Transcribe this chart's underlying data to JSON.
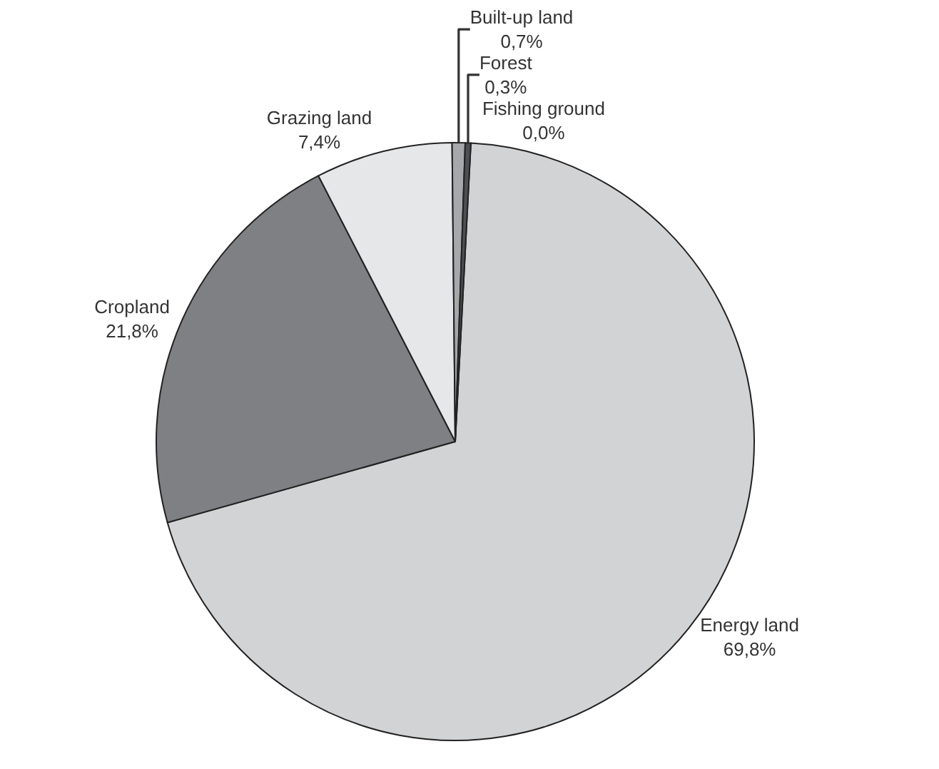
{
  "chart_data": {
    "type": "pie",
    "categories": [
      "Energy land",
      "Cropland",
      "Grazing land",
      "Built-up land",
      "Forest",
      "Fishing ground"
    ],
    "values": [
      69.8,
      21.8,
      7.4,
      0.7,
      0.3,
      0.0
    ],
    "value_labels": [
      "69,8%",
      "21,8%",
      "7,4%",
      "0,7%",
      "0,3%",
      "0,0%"
    ],
    "colors": [
      "#d2d3d5",
      "#7f8084",
      "#e6e7e9",
      "#a7a8ab",
      "#4e4f52",
      "#2b2b2d"
    ]
  }
}
